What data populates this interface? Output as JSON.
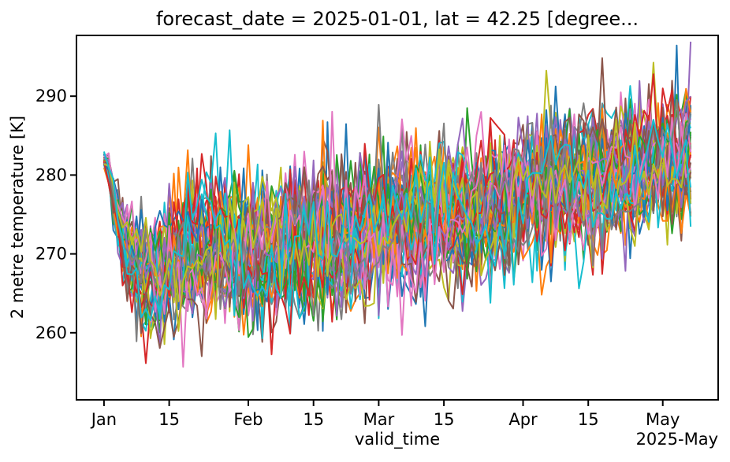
{
  "chart_data": {
    "type": "line",
    "title": "forecast_date = 2025-01-01, lat = 42.25 [degree...",
    "xlabel": "valid_time",
    "ylabel": "2 metre temperature [K]",
    "x_offset_label": "2025-May",
    "x_unit": "days since 2025-01-01",
    "xlim_days": [
      -5.9,
      131.9
    ],
    "ylim": [
      251.5,
      297.7
    ],
    "xticks": [
      {
        "day": 0,
        "label": "Jan"
      },
      {
        "day": 14,
        "label": "15"
      },
      {
        "day": 31,
        "label": "Feb"
      },
      {
        "day": 45,
        "label": "15"
      },
      {
        "day": 59,
        "label": "Mar"
      },
      {
        "day": 73,
        "label": "15"
      },
      {
        "day": 90,
        "label": "Apr"
      },
      {
        "day": 104,
        "label": "15"
      },
      {
        "day": 120,
        "label": "May"
      }
    ],
    "yticks": [
      260,
      270,
      280,
      290
    ],
    "grid": false,
    "legend": "none",
    "n_members": 50,
    "points_per_member": 127,
    "sampling": "daily",
    "line_width": 2,
    "colors": [
      "#1f77b4",
      "#ff7f0e",
      "#2ca02c",
      "#d62728",
      "#9467bd",
      "#8c564b",
      "#e377c2",
      "#7f7f7f",
      "#bcbd22",
      "#17becf"
    ],
    "axis_color": "#000000",
    "background_color": "#ffffff",
    "ensemble_mean_trend": [
      [
        0,
        281.8
      ],
      [
        1,
        281.0
      ],
      [
        2,
        277.0
      ],
      [
        4,
        272.0
      ],
      [
        6,
        269.5
      ],
      [
        8,
        268.0
      ],
      [
        11,
        267.3
      ],
      [
        14,
        269.0
      ],
      [
        20,
        270.5
      ],
      [
        31,
        269.8
      ],
      [
        45,
        271.5
      ],
      [
        59,
        273.5
      ],
      [
        73,
        275.0
      ],
      [
        90,
        277.2
      ],
      [
        104,
        279.3
      ],
      [
        113,
        280.5
      ],
      [
        120,
        281.8
      ],
      [
        126,
        282.5
      ]
    ],
    "ensemble_spread_std": [
      [
        0,
        0.5
      ],
      [
        2,
        1.4
      ],
      [
        4,
        2.4
      ],
      [
        7,
        3.2
      ],
      [
        12,
        3.9
      ],
      [
        25,
        4.4
      ],
      [
        70,
        4.6
      ],
      [
        126,
        4.2
      ]
    ],
    "observed_extremes": {
      "min_K": 253.5,
      "min_day": 32,
      "max_K": 295.5,
      "max_day": 122
    }
  }
}
